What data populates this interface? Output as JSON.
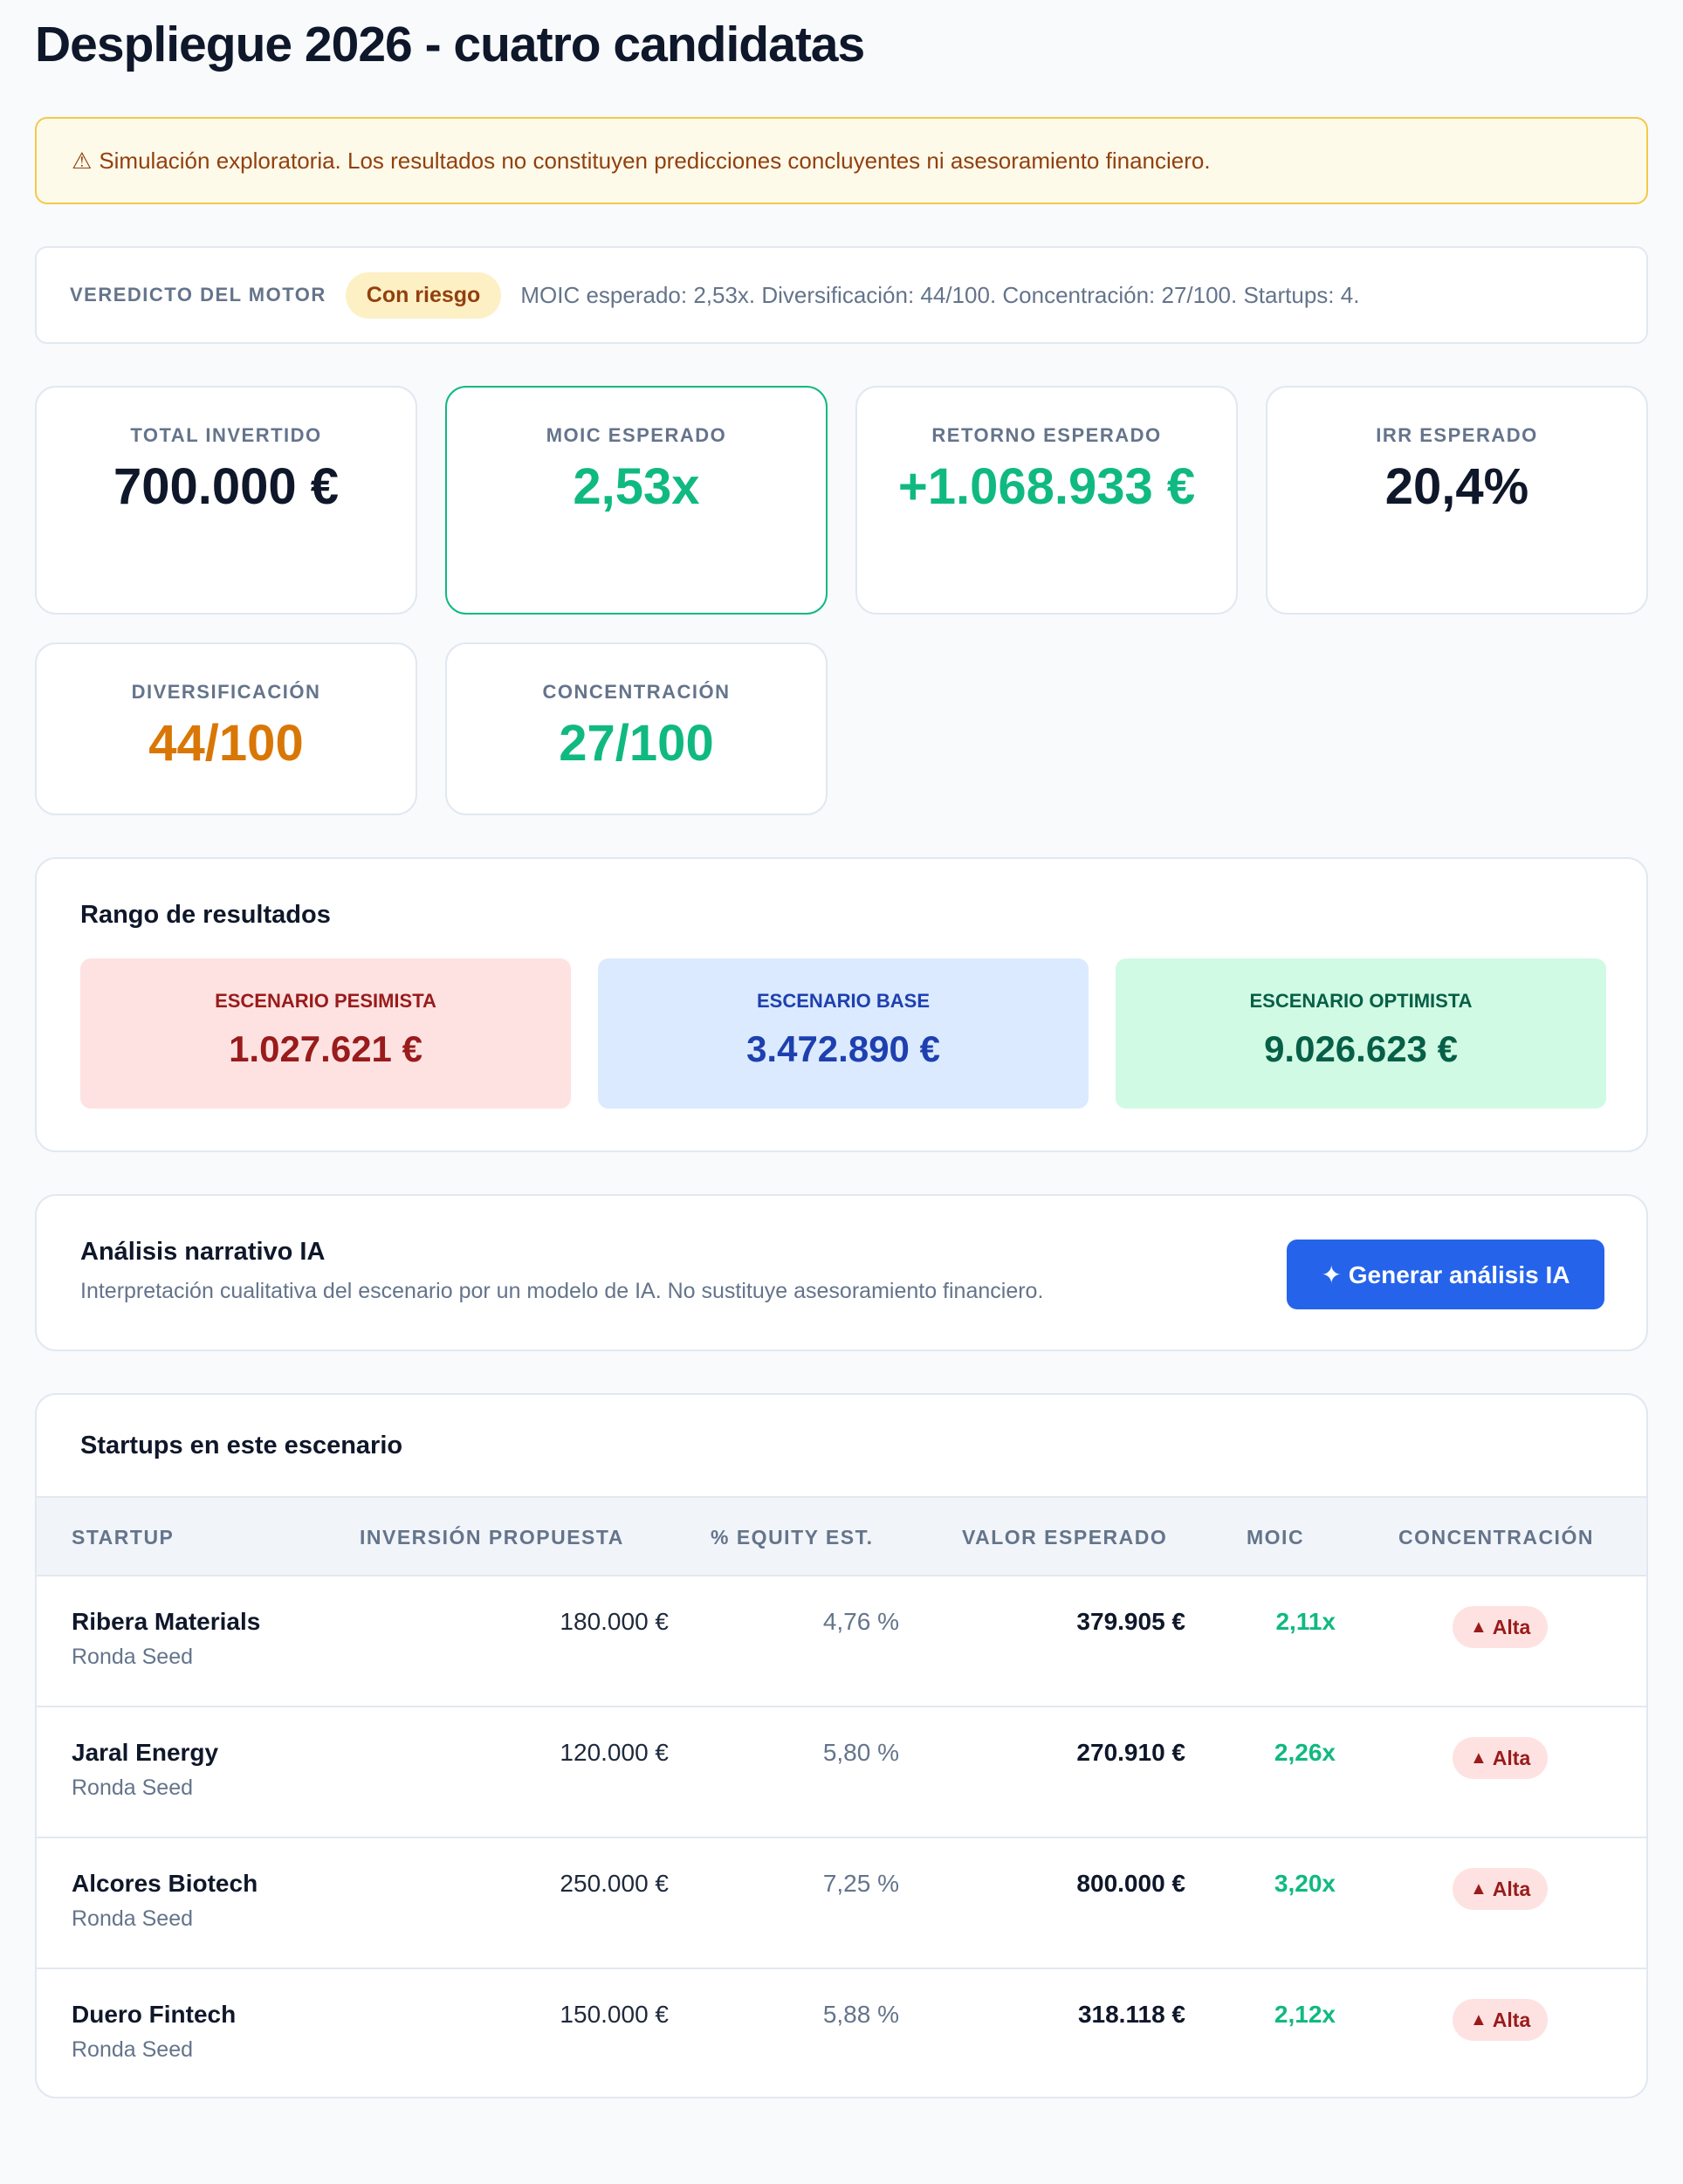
{
  "page": {
    "title": "Despliegue 2026 - cuatro candidatas"
  },
  "warning": {
    "icon": "warning-icon",
    "text": "Simulación exploratoria. Los resultados no constituyen predicciones concluyentes ni asesoramiento financiero."
  },
  "verdict": {
    "label": "VEREDICTO DEL MOTOR",
    "badge": "Con riesgo",
    "text": "MOIC esperado: 2,53x. Diversificación: 44/100. Concentración: 27/100. Startups: 4."
  },
  "kpis": [
    {
      "label": "TOTAL INVERTIDO",
      "value": "700.000 €",
      "color": "#0f172a"
    },
    {
      "label": "MOIC ESPERADO",
      "value": "2,53x",
      "color": "#10b981"
    },
    {
      "label": "RETORNO ESPERADO",
      "value": "+1.068.933 €",
      "color": "#10b981"
    },
    {
      "label": "IRR ESPERADO",
      "value": "20,4%",
      "color": "#0f172a"
    },
    {
      "label": "DIVERSIFICACIÓN",
      "value": "44/100",
      "color": "#d97706"
    },
    {
      "label": "CONCENTRACIÓN",
      "value": "27/100",
      "color": "#10b981"
    }
  ],
  "range": {
    "title": "Rango de resultados",
    "scenarios": [
      {
        "label": "ESCENARIO PESIMISTA",
        "value": "1.027.621 €",
        "bg": "#fee2e2",
        "color": "#991b1b"
      },
      {
        "label": "ESCENARIO BASE",
        "value": "3.472.890 €",
        "bg": "#dbeafe",
        "color": "#1e40af"
      },
      {
        "label": "ESCENARIO OPTIMISTA",
        "value": "9.026.623 €",
        "bg": "#d1fae5",
        "color": "#065f46"
      }
    ]
  },
  "ai": {
    "title": "Análisis narrativo IA",
    "subtitle": "Interpretación cualitativa del escenario por un modelo de IA. No sustituye asesoramiento financiero.",
    "button_label": "✦ Generar análisis IA"
  },
  "table": {
    "title": "Startups en este escenario",
    "headers": [
      "STARTUP",
      "INVERSIÓN PROPUESTA",
      "% EQUITY EST.",
      "VALOR ESPERADO",
      "MOIC",
      "CONCENTRACIÓN"
    ],
    "rows": [
      {
        "name": "Ribera Materials",
        "round": "Ronda Seed",
        "investment": "180.000 €",
        "equity": "4,76 %",
        "value": "379.905 €",
        "moic": "2,11x",
        "concentration": "Alta"
      },
      {
        "name": "Jaral Energy",
        "round": "Ronda Seed",
        "investment": "120.000 €",
        "equity": "5,80 %",
        "value": "270.910 €",
        "moic": "2,26x",
        "concentration": "Alta"
      },
      {
        "name": "Alcores Biotech",
        "round": "Ronda Seed",
        "investment": "250.000 €",
        "equity": "7,25 %",
        "value": "800.000 €",
        "moic": "3,20x",
        "concentration": "Alta"
      },
      {
        "name": "Duero Fintech",
        "round": "Ronda Seed",
        "investment": "150.000 €",
        "equity": "5,88 %",
        "value": "318.118 €",
        "moic": "2,12x",
        "concentration": "Alta"
      }
    ]
  }
}
